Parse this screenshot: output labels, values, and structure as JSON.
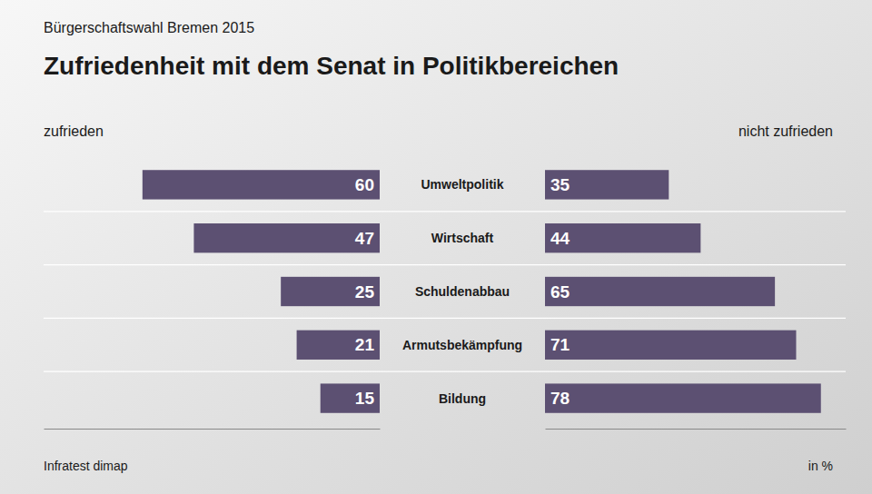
{
  "chart_data": {
    "type": "bar",
    "orientation": "horizontal",
    "subtitle": "Bürgerschaftswahl Bremen 2015",
    "title": "Zufriedenheit mit dem Senat in Politikbereichen",
    "categories": [
      "Umweltpolitik",
      "Wirtschaft",
      "Schuldenabbau",
      "Armutsbekämpfung",
      "Bildung"
    ],
    "series": [
      {
        "name": "zufrieden",
        "color": "#5c5072",
        "values": [
          60,
          47,
          25,
          21,
          15
        ]
      },
      {
        "name": "nicht zufrieden",
        "color": "#5c5072",
        "values": [
          35,
          44,
          65,
          71,
          78
        ]
      }
    ],
    "xlim": [
      0,
      85
    ],
    "data_labels": true,
    "tick_labels": false,
    "grid": false,
    "annotations": [
      "Infratest dimap",
      "in %"
    ]
  }
}
